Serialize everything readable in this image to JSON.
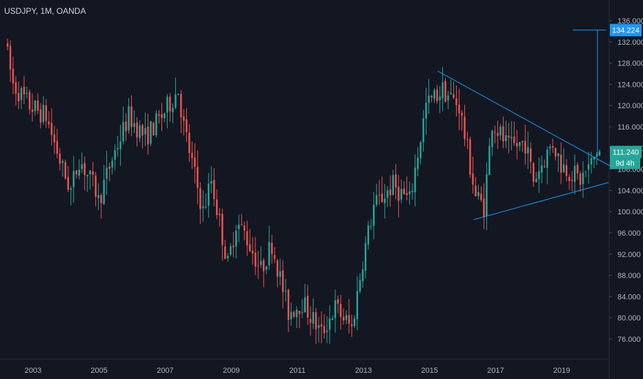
{
  "header": {
    "symbol": "USDJPY, 1M, OANDA"
  },
  "colors": {
    "background": "#131722",
    "up": "#26a69a",
    "down": "#ef5350",
    "trendline": "#2196f3",
    "target_label": "#2196f3",
    "price_label": "#26a69a",
    "axis_text": "#b2b5be"
  },
  "chart_data": {
    "type": "candlestick",
    "title": "USDJPY, 1M, OANDA",
    "x_ticks": [
      "2003",
      "2005",
      "2007",
      "2009",
      "2011",
      "2013",
      "2015",
      "2017",
      "2019"
    ],
    "y_ticks": [
      "76.000",
      "80.000",
      "84.000",
      "88.000",
      "92.000",
      "96.000",
      "100.000",
      "104.000",
      "108.000",
      "112.000",
      "116.000",
      "120.000",
      "124.000",
      "128.000",
      "132.000",
      "136.000"
    ],
    "ylim": [
      74,
      138
    ],
    "xlim": [
      "2002-01",
      "2020-06"
    ],
    "grid": false,
    "approx_path": [
      {
        "date": "2002-03",
        "price": 132
      },
      {
        "date": "2002-06",
        "price": 124
      },
      {
        "date": "2002-12",
        "price": 120
      },
      {
        "date": "2003-06",
        "price": 118
      },
      {
        "date": "2003-12",
        "price": 108
      },
      {
        "date": "2004-03",
        "price": 104
      },
      {
        "date": "2004-06",
        "price": 110
      },
      {
        "date": "2004-12",
        "price": 104
      },
      {
        "date": "2005-01",
        "price": 102
      },
      {
        "date": "2005-06",
        "price": 110
      },
      {
        "date": "2005-12",
        "price": 118
      },
      {
        "date": "2006-06",
        "price": 114
      },
      {
        "date": "2006-12",
        "price": 118
      },
      {
        "date": "2007-06",
        "price": 123
      },
      {
        "date": "2007-08",
        "price": 116
      },
      {
        "date": "2008-03",
        "price": 100
      },
      {
        "date": "2008-06",
        "price": 106
      },
      {
        "date": "2008-12",
        "price": 90
      },
      {
        "date": "2009-03",
        "price": 98
      },
      {
        "date": "2009-06",
        "price": 96
      },
      {
        "date": "2009-12",
        "price": 89
      },
      {
        "date": "2010-04",
        "price": 94
      },
      {
        "date": "2010-10",
        "price": 81
      },
      {
        "date": "2011-03",
        "price": 83
      },
      {
        "date": "2011-10",
        "price": 77
      },
      {
        "date": "2012-03",
        "price": 82
      },
      {
        "date": "2012-09",
        "price": 78
      },
      {
        "date": "2013-01",
        "price": 91
      },
      {
        "date": "2013-05",
        "price": 101
      },
      {
        "date": "2013-12",
        "price": 105
      },
      {
        "date": "2014-06",
        "price": 102
      },
      {
        "date": "2014-12",
        "price": 120
      },
      {
        "date": "2015-06",
        "price": 123
      },
      {
        "date": "2015-12",
        "price": 120
      },
      {
        "date": "2016-06",
        "price": 103
      },
      {
        "date": "2016-09",
        "price": 101
      },
      {
        "date": "2016-12",
        "price": 117
      },
      {
        "date": "2017-06",
        "price": 112
      },
      {
        "date": "2017-12",
        "price": 113
      },
      {
        "date": "2018-03",
        "price": 106
      },
      {
        "date": "2018-10",
        "price": 113
      },
      {
        "date": "2019-01",
        "price": 109
      },
      {
        "date": "2019-08",
        "price": 106
      },
      {
        "date": "2019-12",
        "price": 109
      },
      {
        "date": "2020-02",
        "price": 111.24
      }
    ],
    "drawings": {
      "upper_trendline": [
        {
          "date": "2015-04",
          "price": 126.5
        },
        {
          "date": "2020-07",
          "price": 108.5
        }
      ],
      "lower_trendline": [
        {
          "date": "2016-05",
          "price": 98.5
        },
        {
          "date": "2020-06",
          "price": 105.5
        }
      ],
      "measure_vertical": [
        {
          "date": "2020-02",
          "price": 110.5
        },
        {
          "date": "2020-02",
          "price": 134.224
        }
      ],
      "target_line": [
        {
          "date": "2019-05",
          "price": 134.224
        },
        {
          "date": "2020-05",
          "price": 134.224
        }
      ]
    },
    "price_labels": {
      "target": "134.224",
      "last": "111.240",
      "countdown": "9d 4h",
      "partial_tick": "108.000"
    }
  }
}
